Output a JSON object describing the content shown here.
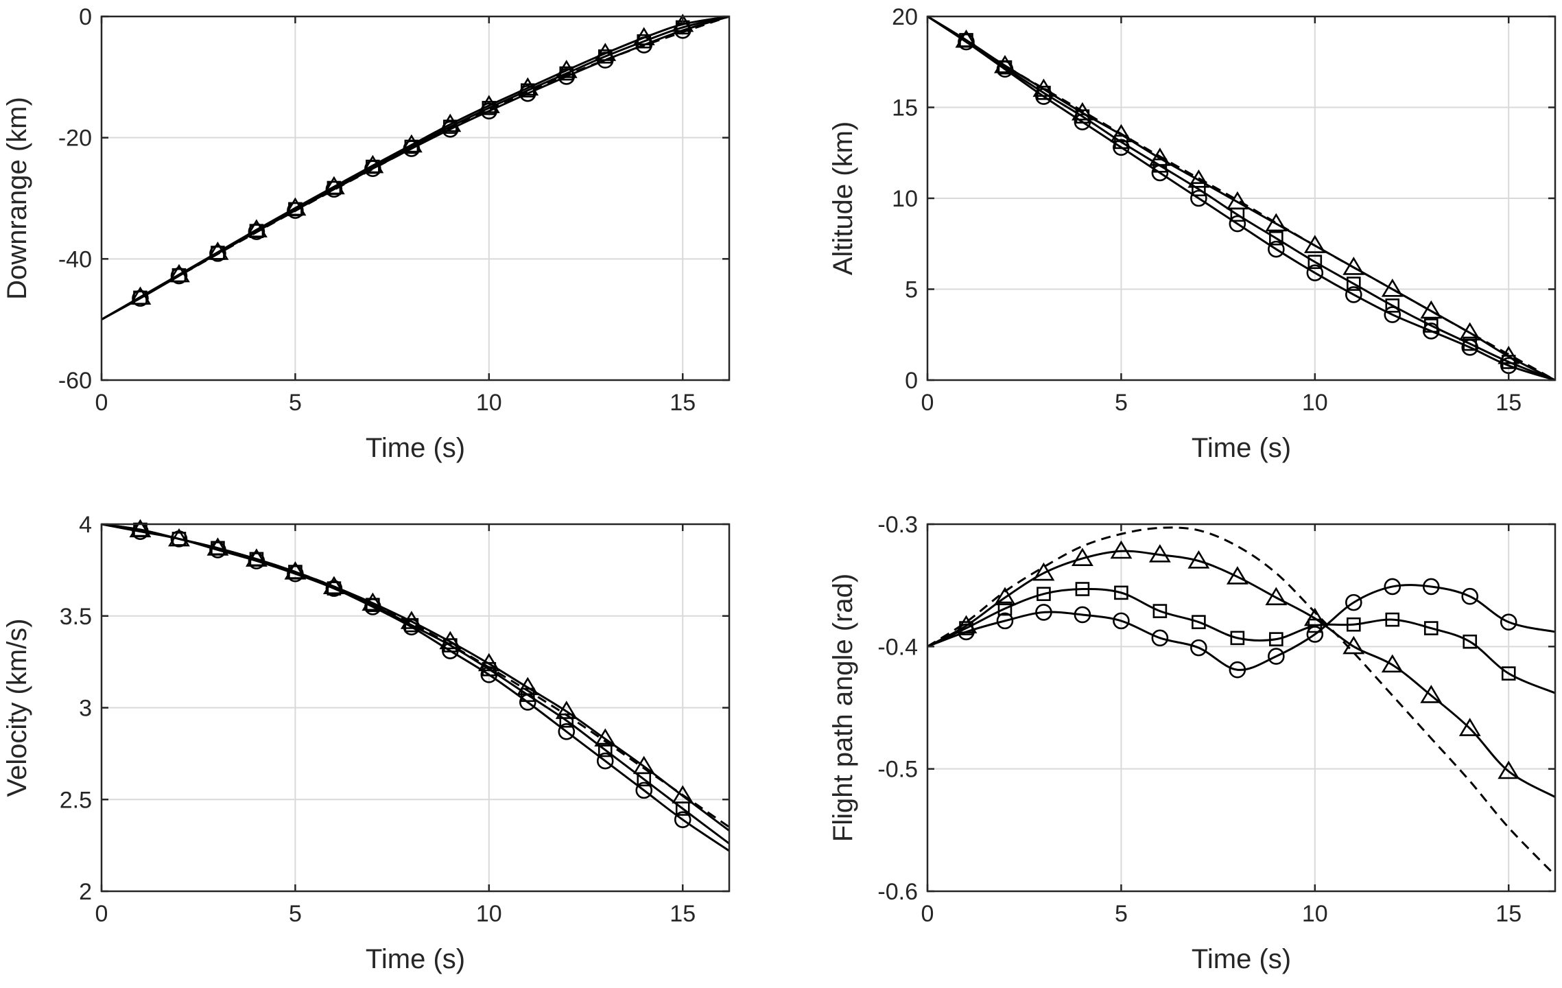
{
  "chart_data": [
    {
      "type": "line",
      "id": "downrange",
      "xlabel": "Time (s)",
      "ylabel": "Downrange (km)",
      "xlim": [
        0,
        16.2
      ],
      "ylim": [
        -60,
        0
      ],
      "xticks": [
        0,
        5,
        10,
        15
      ],
      "yticks": [
        -60,
        -40,
        -20,
        0
      ],
      "xtick_labels": [
        "0",
        "5",
        "10",
        "15"
      ],
      "ytick_labels": [
        "-60",
        "-40",
        "-20",
        "0"
      ],
      "grid": true,
      "series": [
        {
          "name": "reference (dashed)",
          "style": "dashed",
          "marker": "none",
          "x": [
            0,
            2,
            4,
            6,
            8,
            10,
            12,
            14,
            16.2
          ],
          "y": [
            -50,
            -42.8,
            -35.6,
            -28.6,
            -21.8,
            -15.3,
            -9.7,
            -4.8,
            0
          ]
        },
        {
          "name": "triangle",
          "style": "solid",
          "marker": "triangle",
          "x": [
            0,
            1,
            2,
            3,
            4,
            5,
            6,
            7,
            8,
            9,
            10,
            11,
            12,
            13,
            14,
            15,
            16.2
          ],
          "y": [
            -50,
            -46.3,
            -42.6,
            -38.9,
            -35.2,
            -31.6,
            -28.1,
            -24.6,
            -21.2,
            -17.8,
            -14.7,
            -11.8,
            -8.9,
            -6.1,
            -3.5,
            -1.3,
            0
          ]
        },
        {
          "name": "square",
          "style": "solid",
          "marker": "square",
          "x": [
            0,
            1,
            2,
            3,
            4,
            5,
            6,
            7,
            8,
            9,
            10,
            11,
            12,
            13,
            14,
            15,
            16.2
          ],
          "y": [
            -50,
            -46.4,
            -42.7,
            -39.0,
            -35.4,
            -31.8,
            -28.3,
            -24.8,
            -21.5,
            -18.2,
            -15.1,
            -12.2,
            -9.4,
            -6.6,
            -4.1,
            -1.8,
            0
          ]
        },
        {
          "name": "circle",
          "style": "solid",
          "marker": "circle",
          "x": [
            0,
            1,
            2,
            3,
            4,
            5,
            6,
            7,
            8,
            9,
            10,
            11,
            12,
            13,
            14,
            15,
            16.2
          ],
          "y": [
            -50,
            -46.5,
            -42.8,
            -39.1,
            -35.5,
            -32.0,
            -28.5,
            -25.1,
            -21.8,
            -18.6,
            -15.6,
            -12.7,
            -9.9,
            -7.2,
            -4.7,
            -2.3,
            0
          ]
        }
      ]
    },
    {
      "type": "line",
      "id": "altitude",
      "xlabel": "Time (s)",
      "ylabel": "Altitude (km)",
      "xlim": [
        0,
        16.2
      ],
      "ylim": [
        0,
        20
      ],
      "xticks": [
        0,
        5,
        10,
        15
      ],
      "yticks": [
        0,
        5,
        10,
        15,
        20
      ],
      "xtick_labels": [
        "0",
        "5",
        "10",
        "15"
      ],
      "ytick_labels": [
        "0",
        "5",
        "10",
        "15",
        "20"
      ],
      "grid": true,
      "series": [
        {
          "name": "reference (dashed)",
          "style": "dashed",
          "marker": "none",
          "x": [
            0,
            2,
            4,
            6,
            8,
            10,
            12,
            14,
            16.2
          ],
          "y": [
            20,
            17.3,
            14.8,
            12.3,
            9.9,
            7.4,
            5.0,
            2.6,
            0
          ]
        },
        {
          "name": "triangle",
          "style": "solid",
          "marker": "triangle",
          "x": [
            0,
            1,
            2,
            3,
            4,
            5,
            6,
            7,
            8,
            9,
            10,
            11,
            12,
            13,
            14,
            15,
            16.2
          ],
          "y": [
            20,
            18.7,
            17.3,
            16.0,
            14.7,
            13.5,
            12.2,
            11.0,
            9.8,
            8.6,
            7.4,
            6.2,
            5.0,
            3.8,
            2.6,
            1.3,
            0
          ]
        },
        {
          "name": "square",
          "style": "solid",
          "marker": "square",
          "x": [
            0,
            1,
            2,
            3,
            4,
            5,
            6,
            7,
            8,
            9,
            10,
            11,
            12,
            13,
            14,
            15,
            16.2
          ],
          "y": [
            20,
            18.7,
            17.2,
            15.8,
            14.5,
            13.1,
            11.8,
            10.5,
            9.1,
            7.8,
            6.5,
            5.3,
            4.1,
            3.0,
            2.0,
            1.0,
            0
          ]
        },
        {
          "name": "circle",
          "style": "solid",
          "marker": "circle",
          "x": [
            0,
            1,
            2,
            3,
            4,
            5,
            6,
            7,
            8,
            9,
            10,
            11,
            12,
            13,
            14,
            15,
            16.2
          ],
          "y": [
            20,
            18.6,
            17.1,
            15.6,
            14.2,
            12.8,
            11.4,
            10.0,
            8.6,
            7.2,
            5.9,
            4.7,
            3.6,
            2.7,
            1.8,
            0.8,
            0
          ]
        }
      ]
    },
    {
      "type": "line",
      "id": "velocity",
      "xlabel": "Time (s)",
      "ylabel": "Velocity (km/s)",
      "xlim": [
        0,
        16.2
      ],
      "ylim": [
        2,
        4
      ],
      "xticks": [
        0,
        5,
        10,
        15
      ],
      "yticks": [
        2,
        2.5,
        3,
        3.5,
        4
      ],
      "xtick_labels": [
        "0",
        "5",
        "10",
        "15"
      ],
      "ytick_labels": [
        "2",
        "2.5",
        "3",
        "3.5",
        "4"
      ],
      "grid": true,
      "series": [
        {
          "name": "reference (dashed)",
          "style": "dashed",
          "marker": "none",
          "x": [
            0,
            2,
            4,
            6,
            8,
            10,
            12,
            14,
            16.2
          ],
          "y": [
            4.0,
            3.92,
            3.81,
            3.66,
            3.46,
            3.22,
            2.96,
            2.67,
            2.35
          ]
        },
        {
          "name": "triangle",
          "style": "solid",
          "marker": "triangle",
          "x": [
            0,
            1,
            2,
            3,
            4,
            5,
            6,
            7,
            8,
            9,
            10,
            11,
            12,
            13,
            14,
            15,
            16.2
          ],
          "y": [
            4.0,
            3.97,
            3.92,
            3.87,
            3.81,
            3.74,
            3.66,
            3.57,
            3.47,
            3.36,
            3.24,
            3.11,
            2.98,
            2.83,
            2.68,
            2.52,
            2.33
          ]
        },
        {
          "name": "square",
          "style": "solid",
          "marker": "square",
          "x": [
            0,
            1,
            2,
            3,
            4,
            5,
            6,
            7,
            8,
            9,
            10,
            11,
            12,
            13,
            14,
            15,
            16.2
          ],
          "y": [
            4.0,
            3.97,
            3.92,
            3.87,
            3.81,
            3.74,
            3.65,
            3.56,
            3.45,
            3.34,
            3.21,
            3.07,
            2.93,
            2.77,
            2.61,
            2.45,
            2.26
          ]
        },
        {
          "name": "circle",
          "style": "solid",
          "marker": "circle",
          "x": [
            0,
            1,
            2,
            3,
            4,
            5,
            6,
            7,
            8,
            9,
            10,
            11,
            12,
            13,
            14,
            15,
            16.2
          ],
          "y": [
            4.0,
            3.96,
            3.92,
            3.86,
            3.8,
            3.73,
            3.65,
            3.55,
            3.44,
            3.31,
            3.18,
            3.03,
            2.87,
            2.71,
            2.55,
            2.39,
            2.22
          ]
        }
      ]
    },
    {
      "type": "line",
      "id": "flight-path-angle",
      "xlabel": "Time (s)",
      "ylabel": "Flight path angle (rad)",
      "xlim": [
        0,
        16.2
      ],
      "ylim": [
        -0.6,
        -0.3
      ],
      "xticks": [
        0,
        5,
        10,
        15
      ],
      "yticks": [
        -0.6,
        -0.5,
        -0.4,
        -0.3
      ],
      "xtick_labels": [
        "0",
        "5",
        "10",
        "15"
      ],
      "ytick_labels": [
        "-0.6",
        "-0.5",
        "-0.4",
        "-0.3"
      ],
      "grid": true,
      "series": [
        {
          "name": "reference (dashed)",
          "style": "dashed",
          "marker": "none",
          "x": [
            0,
            1,
            2,
            3,
            4,
            5,
            6,
            7,
            8,
            9,
            10,
            11,
            12,
            13,
            14,
            15,
            16.2
          ],
          "y": [
            -0.4,
            -0.38,
            -0.355,
            -0.335,
            -0.318,
            -0.308,
            -0.303,
            -0.305,
            -0.318,
            -0.34,
            -0.372,
            -0.405,
            -0.44,
            -0.475,
            -0.51,
            -0.548,
            -0.587
          ]
        },
        {
          "name": "triangle",
          "style": "solid",
          "marker": "triangle",
          "x": [
            0,
            1,
            2,
            3,
            4,
            5,
            6,
            7,
            8,
            9,
            10,
            11,
            12,
            13,
            14,
            15,
            16.2
          ],
          "y": [
            -0.4,
            -0.383,
            -0.36,
            -0.34,
            -0.328,
            -0.322,
            -0.325,
            -0.33,
            -0.343,
            -0.36,
            -0.377,
            -0.4,
            -0.415,
            -0.44,
            -0.467,
            -0.502,
            -0.523
          ]
        },
        {
          "name": "square",
          "style": "solid",
          "marker": "square",
          "x": [
            0,
            1,
            2,
            3,
            4,
            5,
            6,
            7,
            8,
            9,
            10,
            11,
            12,
            13,
            14,
            15,
            16.2
          ],
          "y": [
            -0.4,
            -0.385,
            -0.369,
            -0.357,
            -0.353,
            -0.356,
            -0.371,
            -0.38,
            -0.393,
            -0.394,
            -0.383,
            -0.382,
            -0.378,
            -0.385,
            -0.396,
            -0.422,
            -0.438
          ]
        },
        {
          "name": "circle",
          "style": "solid",
          "marker": "circle",
          "x": [
            0,
            1,
            2,
            3,
            4,
            5,
            6,
            7,
            8,
            9,
            10,
            11,
            12,
            13,
            14,
            15,
            16.2
          ],
          "y": [
            -0.4,
            -0.388,
            -0.379,
            -0.372,
            -0.374,
            -0.379,
            -0.393,
            -0.401,
            -0.419,
            -0.408,
            -0.39,
            -0.364,
            -0.351,
            -0.351,
            -0.359,
            -0.38,
            -0.388
          ]
        }
      ]
    }
  ]
}
